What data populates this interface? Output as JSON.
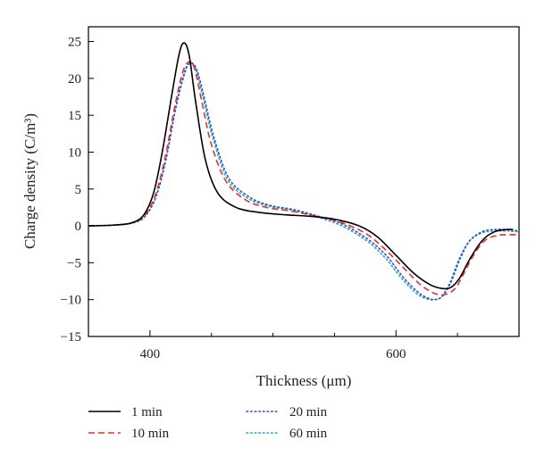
{
  "chart_data": {
    "type": "line",
    "title": "",
    "xlabel": "Thickness (μm)",
    "ylabel": "Charge density (C/m³)",
    "xlim": [
      350,
      700
    ],
    "ylim": [
      -15,
      27
    ],
    "x_ticks": [
      400,
      600
    ],
    "y_ticks": [
      -15,
      -10,
      -5,
      0,
      5,
      10,
      15,
      20,
      25
    ],
    "grid": false,
    "legend_position": "bottom",
    "series": [
      {
        "name": "1 min",
        "color": "#000000",
        "dash": "solid",
        "x": [
          350,
          370,
          385,
          395,
          403,
          410,
          418,
          424,
          428,
          432,
          437,
          445,
          455,
          470,
          490,
          510,
          530,
          550,
          570,
          585,
          600,
          615,
          628,
          638,
          645,
          652,
          660,
          670,
          680,
          690,
          695
        ],
        "y": [
          0,
          0.1,
          0.4,
          1.5,
          4.5,
          10,
          18,
          23.5,
          24.8,
          23,
          17,
          9,
          4.5,
          2.5,
          1.8,
          1.5,
          1.3,
          0.9,
          0,
          -1.5,
          -4,
          -6.5,
          -8,
          -8.5,
          -8.3,
          -7,
          -4.5,
          -2,
          -0.8,
          -0.5,
          -0.5
        ]
      },
      {
        "name": "10 min",
        "color": "#e03030",
        "dash": "dashed",
        "x": [
          350,
          370,
          385,
          395,
          404,
          412,
          420,
          426,
          431,
          436,
          442,
          450,
          462,
          478,
          495,
          515,
          535,
          555,
          575,
          590,
          605,
          620,
          632,
          640,
          648,
          655,
          663,
          672,
          682,
          690,
          700
        ],
        "y": [
          0,
          0.1,
          0.4,
          1.3,
          4,
          9,
          16,
          20.5,
          22.2,
          21.5,
          17,
          11,
          6,
          3.5,
          2.5,
          2,
          1.3,
          0.5,
          -1,
          -3,
          -5.5,
          -8,
          -9.2,
          -9.3,
          -8.5,
          -6.5,
          -4,
          -2,
          -1.3,
          -1.2,
          -1.2
        ]
      },
      {
        "name": "20 min",
        "color": "#3050c8",
        "dash": "dotted",
        "x": [
          350,
          370,
          386,
          396,
          405,
          413,
          421,
          428,
          433,
          438,
          444,
          452,
          464,
          480,
          497,
          517,
          537,
          557,
          577,
          592,
          606,
          618,
          626,
          632,
          638,
          645,
          652,
          660,
          670,
          680,
          690,
          700
        ],
        "y": [
          0,
          0.1,
          0.4,
          1.3,
          4,
          9,
          16,
          20.8,
          22.1,
          21.2,
          17.5,
          12,
          6.5,
          4,
          2.8,
          2.2,
          1.3,
          0.2,
          -1.8,
          -4,
          -7,
          -9,
          -9.8,
          -10,
          -9.5,
          -7.5,
          -4.5,
          -2,
          -0.8,
          -0.5,
          -0.5,
          -0.7
        ]
      },
      {
        "name": "60 min",
        "color": "#2aa8b8",
        "dash": "dotted",
        "x": [
          350,
          370,
          386,
          396,
          405,
          413,
          421,
          428,
          432,
          437,
          443,
          451,
          463,
          479,
          496,
          516,
          536,
          556,
          576,
          591,
          605,
          617,
          625,
          631,
          637,
          644,
          651,
          659,
          669,
          680,
          690,
          700
        ],
        "y": [
          0,
          0.1,
          0.4,
          1.3,
          4,
          9,
          16,
          20.5,
          22,
          21.3,
          17.5,
          12,
          6.3,
          3.8,
          2.7,
          2.1,
          1.2,
          0,
          -2,
          -4.3,
          -7.2,
          -9.2,
          -9.9,
          -10,
          -9.6,
          -7.6,
          -4.6,
          -2.2,
          -1,
          -0.7,
          -0.7,
          -0.8
        ]
      }
    ]
  }
}
